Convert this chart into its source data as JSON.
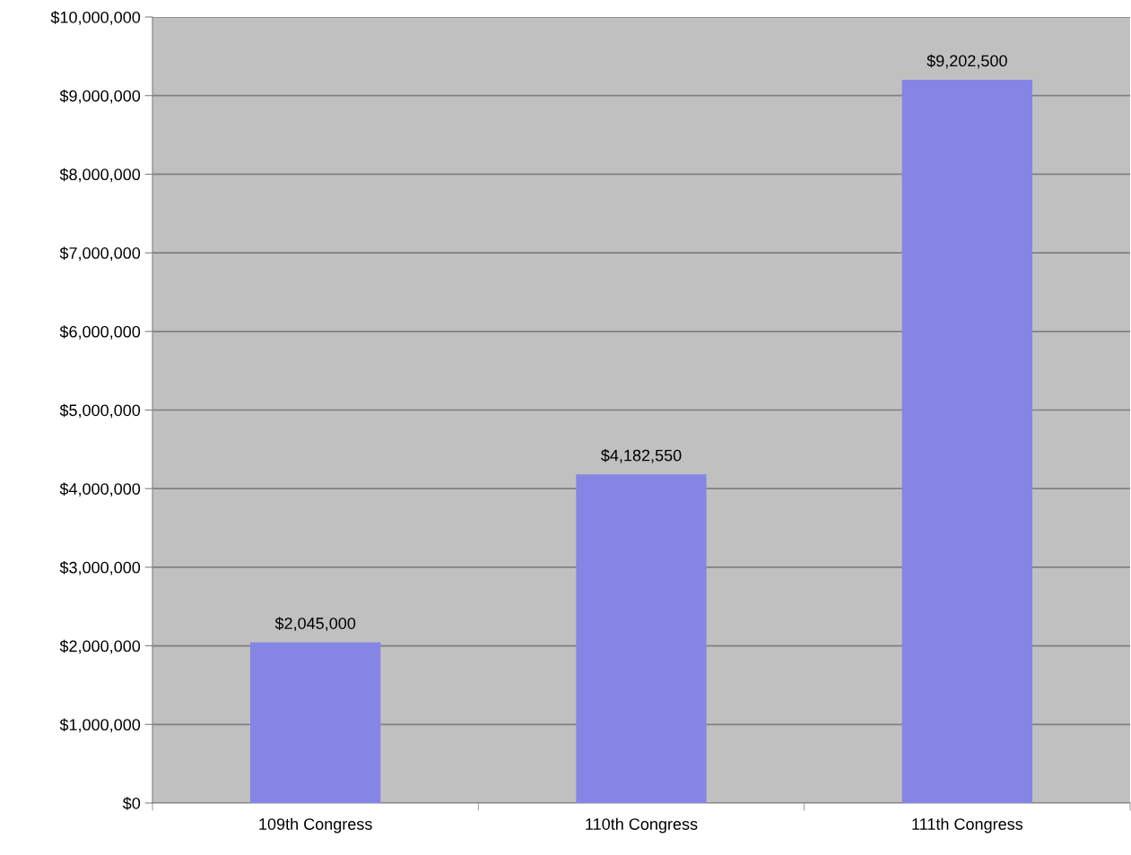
{
  "chart_data": {
    "type": "bar",
    "categories": [
      "109th Congress",
      "110th Congress",
      "111th Congress"
    ],
    "series": [
      {
        "color": "#8585e6",
        "values": [
          2045000,
          4182550,
          9202500
        ],
        "value_labels": [
          "$2,045,000",
          "$4,182,550",
          "$9,202,500"
        ]
      }
    ],
    "ylim": [
      0,
      10000000
    ],
    "yticks": [
      {
        "value": 0,
        "label": "$0"
      },
      {
        "value": 1000000,
        "label": "$1,000,000"
      },
      {
        "value": 2000000,
        "label": "$2,000,000"
      },
      {
        "value": 3000000,
        "label": "$3,000,000"
      },
      {
        "value": 4000000,
        "label": "$4,000,000"
      },
      {
        "value": 5000000,
        "label": "$5,000,000"
      },
      {
        "value": 6000000,
        "label": "$6,000,000"
      },
      {
        "value": 7000000,
        "label": "$7,000,000"
      },
      {
        "value": 8000000,
        "label": "$8,000,000"
      },
      {
        "value": 9000000,
        "label": "$9,000,000"
      },
      {
        "value": 10000000,
        "label": "$10,000,000"
      }
    ],
    "grid": "y"
  }
}
